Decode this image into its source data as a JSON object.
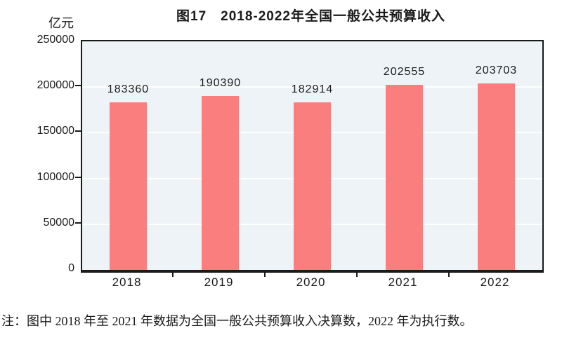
{
  "title": "图17　2018-2022年全国一般公共预算收入",
  "unit_label": "亿元",
  "note": "注：图中 2018 年至 2021 年数据为全国一般公共预算收入决算数，2022 年为执行数。",
  "colors": {
    "bar": "#fb7e7e",
    "plot_bg": "#edf3f6",
    "gridline": "#ffffff",
    "axis": "#1a1a1a",
    "text": "#1a1a1a"
  },
  "chart_data": {
    "type": "bar",
    "categories": [
      "2018",
      "2019",
      "2020",
      "2021",
      "2022"
    ],
    "values": [
      183360,
      190390,
      182914,
      202555,
      203703
    ],
    "series_name": "全国一般公共预算收入",
    "title": "图17　2018-2022年全国一般公共预算收入",
    "xlabel": "",
    "ylabel": "亿元",
    "ylim": [
      0,
      250000
    ],
    "yticks": [
      0,
      50000,
      100000,
      150000,
      200000,
      250000
    ],
    "grid": true,
    "legend": false,
    "bar_labels_shown": true
  }
}
